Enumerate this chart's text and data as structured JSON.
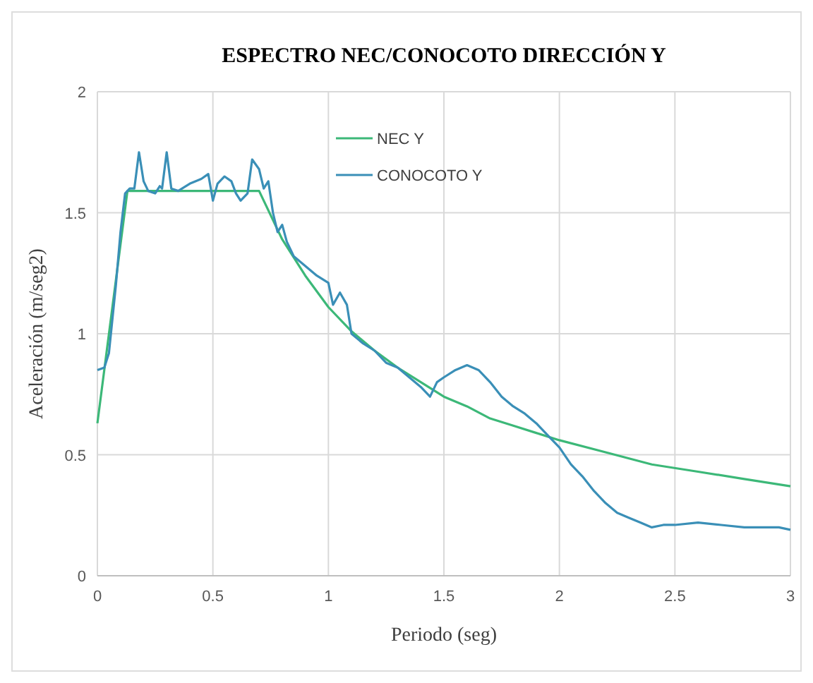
{
  "chart_data": {
    "type": "line",
    "title": "ESPECTRO NEC/CONOCOTO  DIRECCIÓN  Y",
    "xlabel": "Periodo (seg)",
    "ylabel": "Aceleración  (m/seg2)",
    "xlim": [
      0,
      3
    ],
    "ylim": [
      0,
      2
    ],
    "xticks": [
      0,
      0.5,
      1,
      1.5,
      2,
      2.5,
      3
    ],
    "yticks": [
      0,
      0.5,
      1,
      1.5,
      2
    ],
    "grid": true,
    "legend": "top",
    "series": [
      {
        "name": "NEC Y",
        "color": "#3cb878",
        "x": [
          0,
          0.13,
          0.7,
          0.8,
          0.9,
          1.0,
          1.1,
          1.2,
          1.3,
          1.4,
          1.5,
          1.6,
          1.7,
          1.8,
          1.9,
          2.0,
          2.2,
          2.4,
          2.6,
          2.8,
          3.0
        ],
        "values": [
          0.63,
          1.59,
          1.59,
          1.39,
          1.24,
          1.11,
          1.01,
          0.93,
          0.86,
          0.8,
          0.74,
          0.7,
          0.65,
          0.62,
          0.59,
          0.56,
          0.51,
          0.46,
          0.43,
          0.4,
          0.37
        ]
      },
      {
        "name": "CONOCOTO Y",
        "color": "#3a8fb7",
        "x": [
          0,
          0.03,
          0.05,
          0.08,
          0.1,
          0.12,
          0.14,
          0.16,
          0.18,
          0.2,
          0.22,
          0.25,
          0.27,
          0.28,
          0.3,
          0.32,
          0.35,
          0.4,
          0.45,
          0.48,
          0.5,
          0.52,
          0.55,
          0.58,
          0.6,
          0.62,
          0.65,
          0.67,
          0.7,
          0.72,
          0.74,
          0.76,
          0.78,
          0.8,
          0.82,
          0.85,
          0.9,
          0.95,
          1.0,
          1.02,
          1.05,
          1.08,
          1.1,
          1.15,
          1.2,
          1.25,
          1.3,
          1.35,
          1.4,
          1.44,
          1.47,
          1.5,
          1.55,
          1.6,
          1.65,
          1.7,
          1.75,
          1.8,
          1.85,
          1.9,
          1.95,
          2.0,
          2.05,
          2.1,
          2.15,
          2.2,
          2.25,
          2.3,
          2.35,
          2.4,
          2.45,
          2.5,
          2.6,
          2.7,
          2.8,
          2.9,
          2.95,
          3.0
        ],
        "values": [
          0.85,
          0.86,
          0.92,
          1.2,
          1.42,
          1.58,
          1.6,
          1.6,
          1.75,
          1.63,
          1.59,
          1.58,
          1.61,
          1.6,
          1.75,
          1.6,
          1.59,
          1.62,
          1.64,
          1.66,
          1.55,
          1.62,
          1.65,
          1.63,
          1.58,
          1.55,
          1.58,
          1.72,
          1.68,
          1.6,
          1.63,
          1.5,
          1.42,
          1.45,
          1.38,
          1.32,
          1.28,
          1.24,
          1.21,
          1.12,
          1.17,
          1.12,
          1.0,
          0.96,
          0.93,
          0.88,
          0.86,
          0.82,
          0.78,
          0.74,
          0.8,
          0.82,
          0.85,
          0.87,
          0.85,
          0.8,
          0.74,
          0.7,
          0.67,
          0.63,
          0.58,
          0.53,
          0.46,
          0.41,
          0.35,
          0.3,
          0.26,
          0.24,
          0.22,
          0.2,
          0.21,
          0.21,
          0.22,
          0.21,
          0.2,
          0.2,
          0.2,
          0.19
        ]
      }
    ]
  }
}
